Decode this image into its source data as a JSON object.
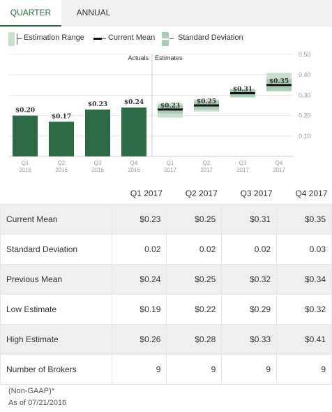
{
  "tabs": [
    {
      "label": "QUARTER",
      "active": true
    },
    {
      "label": "ANNUAL",
      "active": false
    }
  ],
  "legend": {
    "range_label": "Estimation Range",
    "mean_label": "Current Mean",
    "sd_label": "Standard Deviation"
  },
  "chart": {
    "actuals_label": "Actuals",
    "estimates_label": "Estimates",
    "colors": {
      "actual_bar": "#2d6a46",
      "range": "#c9dfcf",
      "sd": "#a9ccb4",
      "mean": "#111111"
    }
  },
  "chart_data": {
    "type": "bar",
    "ylim": [
      0,
      0.5
    ],
    "yticks": [
      "0.10",
      "0.20",
      "0.30",
      "0.40",
      "0.50"
    ],
    "ytick_values": [
      0.1,
      0.2,
      0.3,
      0.4,
      0.5
    ],
    "grid": true,
    "actuals": [
      {
        "quarter": "Q1",
        "year": "2016",
        "value": 0.2,
        "label": "$0.20"
      },
      {
        "quarter": "Q2",
        "year": "2016",
        "value": 0.17,
        "label": "$0.17"
      },
      {
        "quarter": "Q3",
        "year": "2016",
        "value": 0.23,
        "label": "$0.23"
      },
      {
        "quarter": "Q4",
        "year": "2016",
        "value": 0.24,
        "label": "$0.24"
      }
    ],
    "estimates": [
      {
        "quarter": "Q1",
        "year": "2017",
        "mean": 0.23,
        "sd": 0.02,
        "low": 0.19,
        "high": 0.26,
        "label": "$0.23"
      },
      {
        "quarter": "Q2",
        "year": "2017",
        "mean": 0.25,
        "sd": 0.02,
        "low": 0.22,
        "high": 0.28,
        "label": "$0.25"
      },
      {
        "quarter": "Q3",
        "year": "2017",
        "mean": 0.31,
        "sd": 0.02,
        "low": 0.29,
        "high": 0.33,
        "label": "$0.31"
      },
      {
        "quarter": "Q4",
        "year": "2017",
        "mean": 0.35,
        "sd": 0.03,
        "low": 0.32,
        "high": 0.41,
        "label": "$0.35"
      }
    ]
  },
  "table": {
    "headers": [
      "",
      "Q1 2017",
      "Q2 2017",
      "Q3 2017",
      "Q4 2017"
    ],
    "rows": [
      {
        "label": "Current Mean",
        "values": [
          "$0.23",
          "$0.25",
          "$0.31",
          "$0.35"
        ]
      },
      {
        "label": "Standard Deviation",
        "values": [
          "0.02",
          "0.02",
          "0.02",
          "0.03"
        ]
      },
      {
        "label": "Previous Mean",
        "values": [
          "$0.24",
          "$0.25",
          "$0.32",
          "$0.34"
        ]
      },
      {
        "label": "Low Estimate",
        "values": [
          "$0.19",
          "$0.22",
          "$0.29",
          "$0.32"
        ]
      },
      {
        "label": "High Estimate",
        "values": [
          "$0.26",
          "$0.28",
          "$0.33",
          "$0.41"
        ]
      },
      {
        "label": "Number of Brokers",
        "values": [
          "9",
          "9",
          "9",
          "9"
        ]
      }
    ]
  },
  "footer": {
    "note": "(Non-GAAP)*",
    "as_of": "As of 07/21/2016"
  }
}
